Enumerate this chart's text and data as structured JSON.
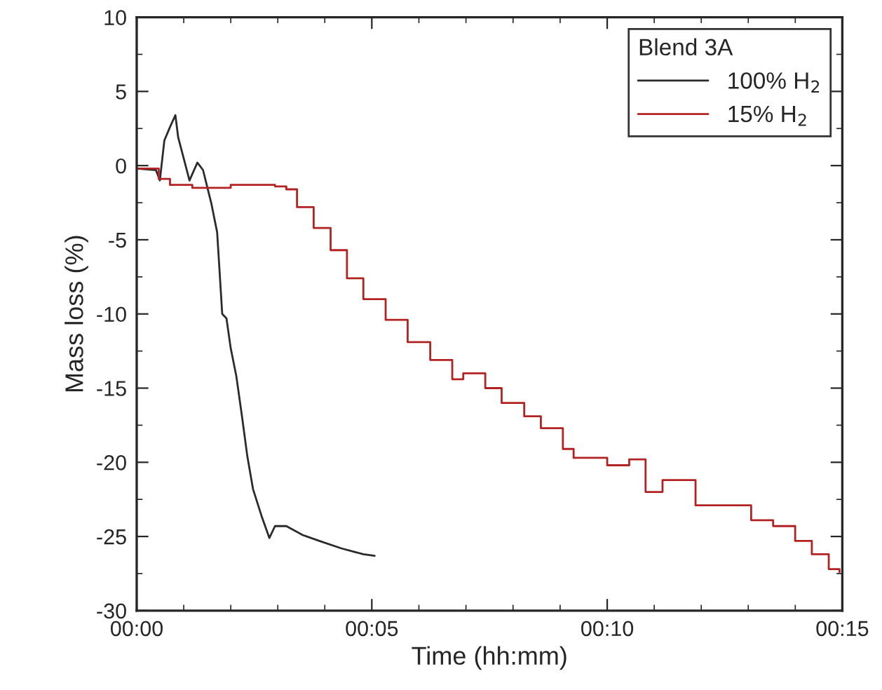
{
  "chart_data": {
    "type": "line",
    "xlabel": "Time (hh:mm)",
    "ylabel": "Mass loss (%)",
    "legend_title": "Blend 3A",
    "legend": "top right",
    "grid": false,
    "xlim": [
      0,
      0.25
    ],
    "xticks": [
      {
        "value": 0,
        "label": "00:00"
      },
      {
        "value": 0.0833,
        "label": "00:05"
      },
      {
        "value": 0.1667,
        "label": "00:10"
      },
      {
        "value": 0.25,
        "label": "00:15"
      }
    ],
    "ylim": [
      -30,
      10
    ],
    "yticks": [
      -30,
      -25,
      -20,
      -15,
      -10,
      -5,
      0,
      5,
      10
    ],
    "series": [
      {
        "name": "100% H$_{2}$",
        "color": "#2b2b2b",
        "x": [
          0,
          0.0068,
          0.0082,
          0.0098,
          0.0118,
          0.0137,
          0.0147,
          0.0187,
          0.0215,
          0.0235,
          0.0265,
          0.0285,
          0.0303,
          0.0318,
          0.0333,
          0.0353,
          0.0373,
          0.0392,
          0.0412,
          0.0442,
          0.047,
          0.049,
          0.053,
          0.0588,
          0.0647,
          0.0725,
          0.0803,
          0.0843
        ],
        "values": [
          -0.2,
          -0.3,
          -1.0,
          1.7,
          2.6,
          3.4,
          1.9,
          -1.0,
          0.2,
          -0.3,
          -2.6,
          -4.5,
          -10.0,
          -10.3,
          -12.3,
          -14.2,
          -16.9,
          -19.6,
          -21.8,
          -23.6,
          -25.1,
          -24.3,
          -24.3,
          -24.9,
          -25.3,
          -25.8,
          -26.2,
          -26.3
        ]
      },
      {
        "name": "15% H$_{2}$",
        "color": "#b22222",
        "type": "step",
        "x": [
          0,
          0.0078,
          0.0118,
          0.0197,
          0.0333,
          0.049,
          0.053,
          0.0568,
          0.0627,
          0.0687,
          0.0745,
          0.0803,
          0.0882,
          0.096,
          0.104,
          0.1118,
          0.1157,
          0.1235,
          0.1293,
          0.1373,
          0.1432,
          0.151,
          0.1548,
          0.1608,
          0.1667,
          0.1745,
          0.1803,
          0.1863,
          0.1922,
          0.198,
          0.2098,
          0.2177,
          0.2255,
          0.2333,
          0.2392,
          0.2452,
          0.249
        ],
        "values": [
          -0.2,
          -0.9,
          -1.3,
          -1.5,
          -1.3,
          -1.4,
          -1.6,
          -2.8,
          -4.2,
          -5.7,
          -7.6,
          -9.0,
          -10.4,
          -11.9,
          -13.1,
          -14.4,
          -14.0,
          -15.0,
          -16.0,
          -16.9,
          -17.7,
          -19.1,
          -19.7,
          -19.7,
          -20.2,
          -19.8,
          -22.0,
          -21.2,
          -21.2,
          -22.9,
          -22.9,
          -23.9,
          -24.3,
          -25.3,
          -26.2,
          -27.2,
          -27.4
        ]
      }
    ]
  }
}
